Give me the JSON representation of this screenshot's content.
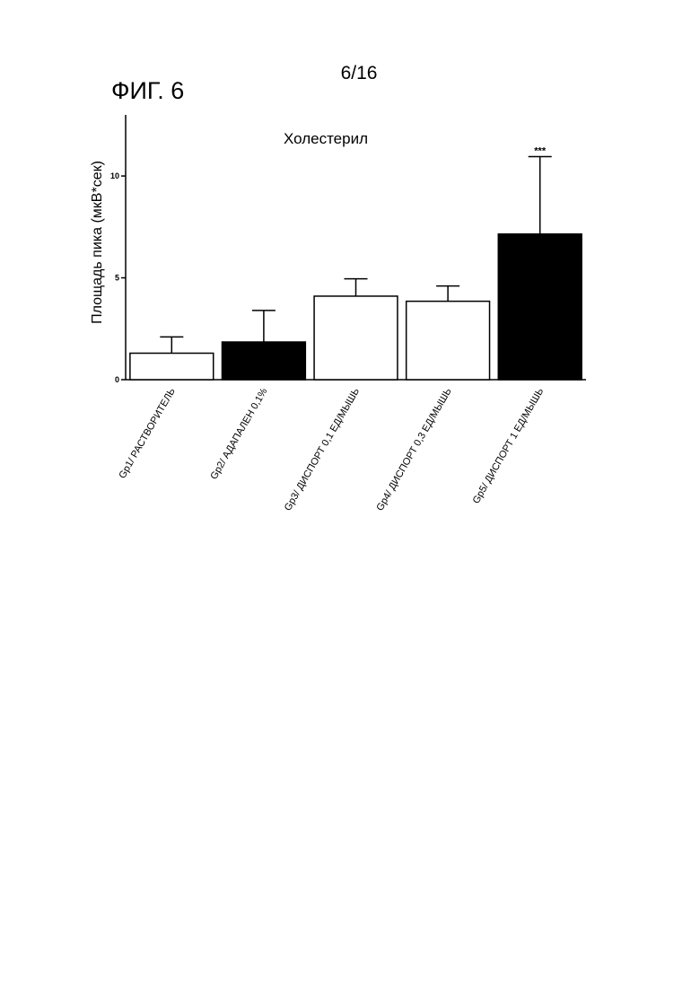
{
  "page": {
    "page_number": "6/16",
    "figure_label": "ФИГ. 6"
  },
  "chart_data": {
    "type": "bar",
    "title": "Холестерил",
    "xlabel": "",
    "ylabel": "Площадь пика (мкВ*сек)",
    "ylim": [
      0,
      13
    ],
    "yticks": [
      0,
      5,
      10
    ],
    "grid": false,
    "legend": "none",
    "categories": [
      "Gp1/ РАСТВОРИТЕЛЬ",
      "Gp2/ АДАПАЛЕН 0,1%",
      "Gp3/ ДИСПОРТ 0,1 ЕД/МЫШЬ",
      "Gp4/ ДИСПОРТ 0,3 ЕД/МЫШЬ",
      "Gp5/ ДИСПОРТ 1 ЕД/МЫШЬ"
    ],
    "values": [
      1.3,
      1.85,
      4.1,
      3.85,
      7.15
    ],
    "error_upper": [
      2.1,
      3.4,
      4.95,
      4.6,
      10.95
    ],
    "bar_fill": [
      "#ffffff",
      "#000000",
      "#ffffff",
      "#ffffff",
      "#000000"
    ],
    "annotations": [
      {
        "category_index": 4,
        "text": "***"
      }
    ]
  }
}
